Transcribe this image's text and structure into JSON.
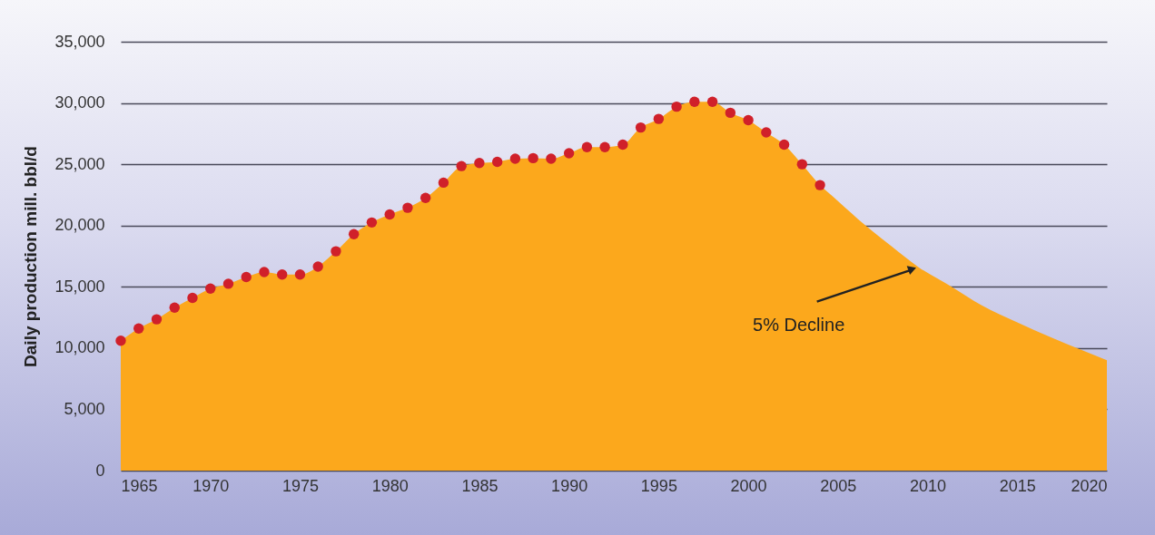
{
  "chart_data": {
    "type": "area",
    "ylabel": "Daily production mill. bbl/d",
    "xlim": [
      1965,
      2020
    ],
    "xticks": [
      1965,
      1970,
      1975,
      1980,
      1985,
      1990,
      1995,
      2000,
      2005,
      2010,
      2015,
      2020
    ],
    "ylim": [
      0,
      35000
    ],
    "yticks": [
      0,
      {
        "value": 5000,
        "label": "5,000"
      },
      {
        "value": 10000,
        "label": "10,000"
      },
      {
        "value": 15000,
        "label": "15,000"
      },
      {
        "value": 20000,
        "label": "20,000"
      },
      {
        "value": 25000,
        "label": "25,000"
      },
      {
        "value": 30000,
        "label": "30,000"
      },
      {
        "value": 35000,
        "label": "35,000"
      }
    ],
    "grid": "y",
    "annotations": [
      {
        "text": "5% Decline",
        "x": 2009.5,
        "y": 16600
      }
    ],
    "series": [
      {
        "color": "#fca81c",
        "x": [
          1965,
          1966,
          1967,
          1968,
          1969,
          1970,
          1971,
          1972,
          1973,
          1974,
          1975,
          1976,
          1977,
          1978,
          1979,
          1980,
          1981,
          1982,
          1983,
          1984,
          1985,
          1986,
          1987,
          1988,
          1989,
          1990,
          1991,
          1992,
          1993,
          1994,
          1995,
          1996,
          1997,
          1998,
          1999,
          2000,
          2001,
          2002,
          2003,
          2004,
          2005,
          2006.5,
          2008,
          2009.5,
          2011.4,
          2013,
          2015,
          2017,
          2018.5,
          2020
        ],
        "values": [
          10600,
          11600,
          12350,
          13300,
          14100,
          14850,
          15250,
          15800,
          16200,
          16000,
          16000,
          16650,
          17900,
          19300,
          20250,
          20900,
          21450,
          22250,
          23500,
          24850,
          25100,
          25200,
          25450,
          25500,
          25450,
          25900,
          26400,
          26400,
          26600,
          28000,
          28700,
          29700,
          30100,
          30100,
          29200,
          28600,
          27600,
          26600,
          25000,
          23300,
          22000,
          20050,
          18300,
          16600,
          14950,
          13500,
          12100,
          10800,
          9900,
          9000
        ]
      },
      {
        "type": "scatter",
        "color": "#d0202a",
        "marker": "circle",
        "x": [
          1965,
          1966,
          1967,
          1968,
          1969,
          1970,
          1971,
          1972,
          1973,
          1974,
          1975,
          1976,
          1977,
          1978,
          1979,
          1980,
          1981,
          1982,
          1983,
          1984,
          1985,
          1986,
          1987,
          1988,
          1989,
          1990,
          1991,
          1992,
          1993,
          1994,
          1995,
          1996,
          1997,
          1998,
          1999,
          2000,
          2001,
          2002,
          2003,
          2004
        ],
        "values": [
          10600,
          11600,
          12350,
          13300,
          14100,
          14850,
          15250,
          15800,
          16200,
          16000,
          16000,
          16650,
          17900,
          19300,
          20250,
          20900,
          21450,
          22250,
          23500,
          24850,
          25100,
          25200,
          25450,
          25500,
          25450,
          25900,
          26400,
          26400,
          26600,
          28000,
          28700,
          29700,
          30100,
          30100,
          29200,
          28600,
          27600,
          26600,
          25000,
          23300
        ]
      }
    ]
  }
}
